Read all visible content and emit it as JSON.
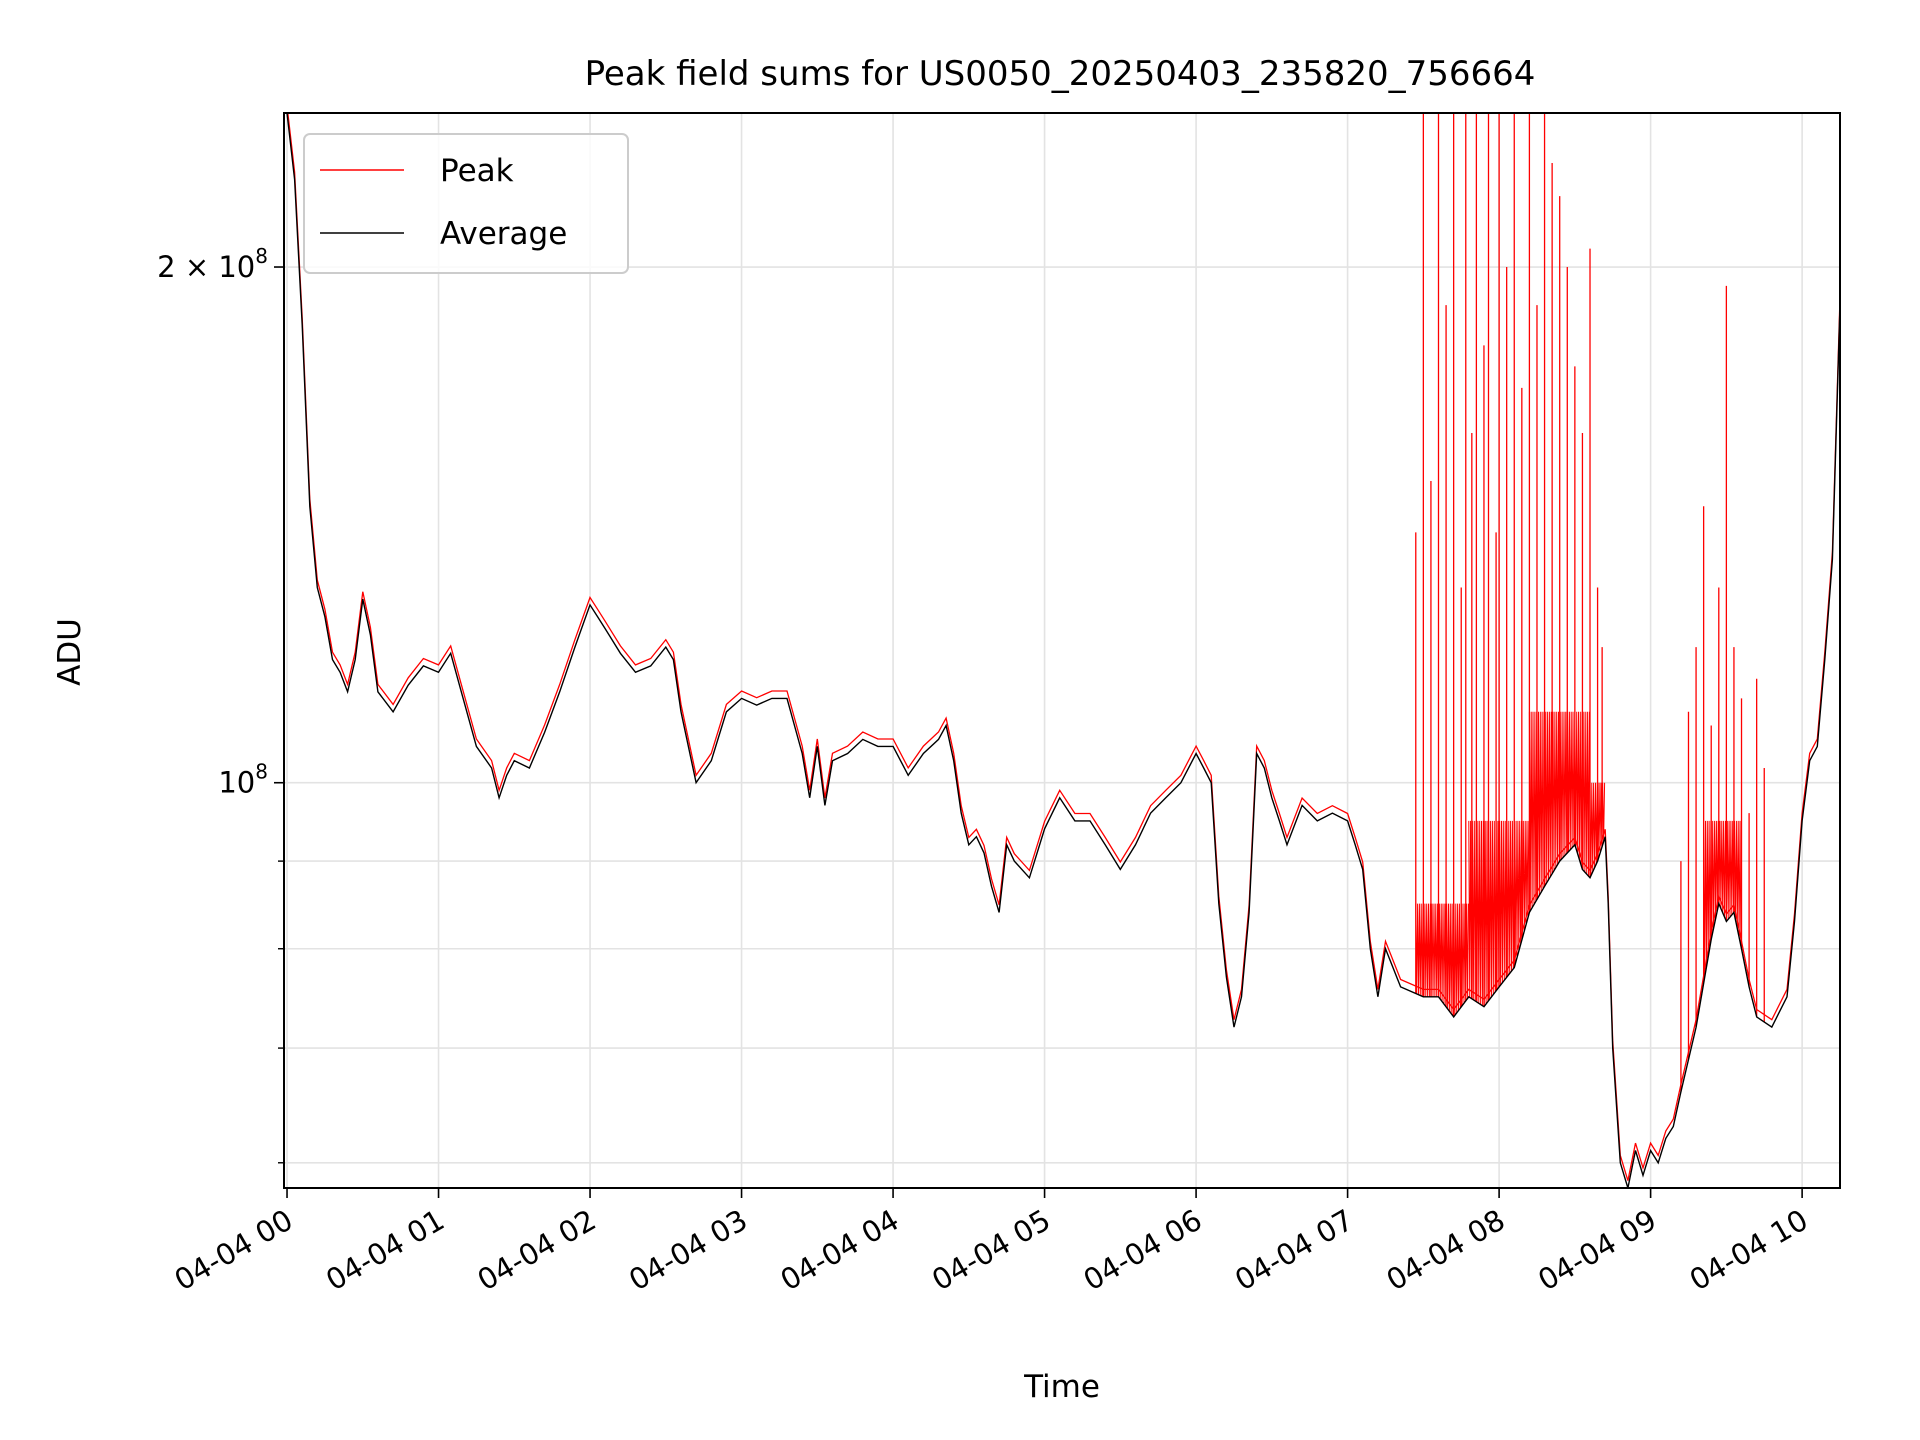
{
  "chart_data": {
    "type": "line",
    "title": "Peak field sums for US0050_20250403_235820_756664",
    "xlabel": "Time",
    "ylabel": "ADU",
    "y_scale": "log",
    "grid": true,
    "legend_position": "top-left",
    "x_tick_labels": [
      "04-04 00",
      "04-04 01",
      "04-04 02",
      "04-04 03",
      "04-04 04",
      "04-04 05",
      "04-04 06",
      "04-04 07",
      "04-04 08",
      "04-04 09",
      "04-04 10"
    ],
    "x_range_hours": [
      -0.02,
      10.25
    ],
    "ylim": [
      58000000,
      246000000
    ],
    "y_major_ticks": [
      {
        "value": 100000000,
        "base": "10",
        "exp": "8",
        "coef": ""
      },
      {
        "value": 200000000,
        "base": "10",
        "exp": "8",
        "coef": "2 × "
      }
    ],
    "y_minor_ticks": [
      60000000,
      70000000,
      80000000,
      90000000
    ],
    "series": [
      {
        "name": "Peak",
        "color": "#ff0000"
      },
      {
        "name": "Average",
        "color": "#000000"
      }
    ],
    "average_points": [
      [
        0.0,
        246
      ],
      [
        0.05,
        225
      ],
      [
        0.1,
        185
      ],
      [
        0.15,
        145
      ],
      [
        0.2,
        130
      ],
      [
        0.25,
        125
      ],
      [
        0.3,
        118
      ],
      [
        0.35,
        116
      ],
      [
        0.4,
        113
      ],
      [
        0.45,
        118
      ],
      [
        0.5,
        128
      ],
      [
        0.55,
        122
      ],
      [
        0.6,
        113
      ],
      [
        0.7,
        110
      ],
      [
        0.8,
        114
      ],
      [
        0.9,
        117
      ],
      [
        1.0,
        116
      ],
      [
        1.08,
        119
      ],
      [
        1.15,
        113
      ],
      [
        1.25,
        105
      ],
      [
        1.35,
        102
      ],
      [
        1.4,
        98
      ],
      [
        1.45,
        101
      ],
      [
        1.5,
        103
      ],
      [
        1.6,
        102
      ],
      [
        1.7,
        107
      ],
      [
        1.8,
        113
      ],
      [
        1.9,
        120
      ],
      [
        2.0,
        127
      ],
      [
        2.05,
        125
      ],
      [
        2.1,
        123
      ],
      [
        2.2,
        119
      ],
      [
        2.3,
        116
      ],
      [
        2.4,
        117
      ],
      [
        2.5,
        120
      ],
      [
        2.55,
        118
      ],
      [
        2.6,
        110
      ],
      [
        2.7,
        100
      ],
      [
        2.8,
        103
      ],
      [
        2.9,
        110
      ],
      [
        3.0,
        112
      ],
      [
        3.1,
        111
      ],
      [
        3.2,
        112
      ],
      [
        3.3,
        112
      ],
      [
        3.4,
        104
      ],
      [
        3.45,
        98
      ],
      [
        3.5,
        105
      ],
      [
        3.55,
        97
      ],
      [
        3.6,
        103
      ],
      [
        3.7,
        104
      ],
      [
        3.8,
        106
      ],
      [
        3.9,
        105
      ],
      [
        4.0,
        105
      ],
      [
        4.1,
        101
      ],
      [
        4.2,
        104
      ],
      [
        4.3,
        106
      ],
      [
        4.35,
        108
      ],
      [
        4.4,
        103
      ],
      [
        4.45,
        96
      ],
      [
        4.5,
        92
      ],
      [
        4.55,
        93
      ],
      [
        4.6,
        91
      ],
      [
        4.65,
        87
      ],
      [
        4.7,
        84
      ],
      [
        4.75,
        92
      ],
      [
        4.8,
        90
      ],
      [
        4.9,
        88
      ],
      [
        5.0,
        94
      ],
      [
        5.1,
        98
      ],
      [
        5.2,
        95
      ],
      [
        5.3,
        95
      ],
      [
        5.4,
        92
      ],
      [
        5.5,
        89
      ],
      [
        5.6,
        92
      ],
      [
        5.7,
        96
      ],
      [
        5.8,
        98
      ],
      [
        5.9,
        100
      ],
      [
        6.0,
        104
      ],
      [
        6.05,
        102
      ],
      [
        6.1,
        100
      ],
      [
        6.15,
        85
      ],
      [
        6.2,
        77
      ],
      [
        6.25,
        72
      ],
      [
        6.3,
        75
      ],
      [
        6.35,
        84
      ],
      [
        6.4,
        104
      ],
      [
        6.45,
        102
      ],
      [
        6.5,
        98
      ],
      [
        6.55,
        95
      ],
      [
        6.6,
        92
      ],
      [
        6.7,
        97
      ],
      [
        6.8,
        95
      ],
      [
        6.9,
        96
      ],
      [
        7.0,
        95
      ],
      [
        7.05,
        92
      ],
      [
        7.1,
        89
      ],
      [
        7.15,
        80
      ],
      [
        7.2,
        75
      ],
      [
        7.25,
        80
      ],
      [
        7.3,
        78
      ],
      [
        7.35,
        76
      ],
      [
        7.5,
        75
      ],
      [
        7.6,
        75
      ],
      [
        7.7,
        73
      ],
      [
        7.8,
        75
      ],
      [
        7.9,
        74
      ],
      [
        8.0,
        76
      ],
      [
        8.1,
        78
      ],
      [
        8.2,
        84
      ],
      [
        8.3,
        87
      ],
      [
        8.4,
        90
      ],
      [
        8.5,
        92
      ],
      [
        8.55,
        89
      ],
      [
        8.6,
        88
      ],
      [
        8.65,
        90
      ],
      [
        8.7,
        93
      ],
      [
        8.72,
        85
      ],
      [
        8.75,
        70
      ],
      [
        8.8,
        60
      ],
      [
        8.85,
        58
      ],
      [
        8.9,
        61
      ],
      [
        8.95,
        59
      ],
      [
        9.0,
        61
      ],
      [
        9.05,
        60
      ],
      [
        9.1,
        62
      ],
      [
        9.15,
        63
      ],
      [
        9.2,
        66
      ],
      [
        9.3,
        72
      ],
      [
        9.4,
        81
      ],
      [
        9.45,
        85
      ],
      [
        9.5,
        83
      ],
      [
        9.55,
        84
      ],
      [
        9.6,
        80
      ],
      [
        9.65,
        76
      ],
      [
        9.7,
        73
      ],
      [
        9.8,
        72
      ],
      [
        9.9,
        75
      ],
      [
        9.95,
        83
      ],
      [
        10.0,
        95
      ],
      [
        10.05,
        103
      ],
      [
        10.1,
        105
      ],
      [
        10.15,
        118
      ],
      [
        10.2,
        135
      ],
      [
        10.25,
        190
      ]
    ],
    "peak_spikes": [
      [
        7.45,
        140
      ],
      [
        7.5,
        246
      ],
      [
        7.55,
        150
      ],
      [
        7.6,
        246
      ],
      [
        7.65,
        190
      ],
      [
        7.7,
        246
      ],
      [
        7.75,
        130
      ],
      [
        7.78,
        246
      ],
      [
        7.82,
        160
      ],
      [
        7.85,
        246
      ],
      [
        7.9,
        180
      ],
      [
        7.93,
        246
      ],
      [
        7.98,
        140
      ],
      [
        8.0,
        246
      ],
      [
        8.05,
        200
      ],
      [
        8.1,
        246
      ],
      [
        8.15,
        170
      ],
      [
        8.2,
        246
      ],
      [
        8.25,
        190
      ],
      [
        8.3,
        246
      ],
      [
        8.35,
        230
      ],
      [
        8.4,
        220
      ],
      [
        8.45,
        200
      ],
      [
        8.5,
        175
      ],
      [
        8.55,
        160
      ],
      [
        8.6,
        205
      ],
      [
        8.65,
        130
      ],
      [
        8.68,
        120
      ],
      [
        9.2,
        90
      ],
      [
        9.25,
        110
      ],
      [
        9.3,
        120
      ],
      [
        9.35,
        145
      ],
      [
        9.4,
        108
      ],
      [
        9.45,
        130
      ],
      [
        9.5,
        195
      ],
      [
        9.55,
        120
      ],
      [
        9.6,
        112
      ],
      [
        9.65,
        96
      ],
      [
        9.7,
        115
      ],
      [
        9.75,
        102
      ]
    ],
    "peak_band": [
      [
        7.45,
        7.8,
        85
      ],
      [
        7.8,
        8.2,
        95
      ],
      [
        8.2,
        8.6,
        110
      ],
      [
        8.6,
        8.7,
        100
      ],
      [
        9.35,
        9.6,
        95
      ]
    ]
  }
}
